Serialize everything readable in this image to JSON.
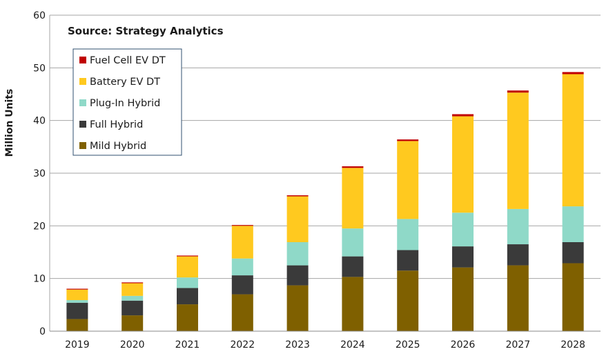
{
  "chart_data": {
    "type": "bar",
    "stacked": true,
    "title": "",
    "source_note": "Source: Strategy Analytics",
    "xlabel": "",
    "ylabel": "Million Units",
    "ylim": [
      0,
      60
    ],
    "yticks": [
      0,
      10,
      20,
      30,
      40,
      50,
      60
    ],
    "grid": true,
    "legend_position": "top-left",
    "categories": [
      "2019",
      "2020",
      "2021",
      "2022",
      "2023",
      "2024",
      "2025",
      "2026",
      "2027",
      "2028"
    ],
    "series": [
      {
        "name": "Mild Hybrid",
        "color": "#7f6000",
        "values": [
          2.3,
          3.0,
          5.1,
          7.0,
          8.7,
          10.3,
          11.5,
          12.1,
          12.5,
          12.9
        ]
      },
      {
        "name": "Full Hybrid",
        "color": "#3a3a3a",
        "values": [
          3.1,
          2.8,
          3.1,
          3.6,
          3.8,
          3.9,
          3.9,
          4.0,
          4.0,
          4.0
        ]
      },
      {
        "name": "Plug-In Hybrid",
        "color": "#8fd9c8",
        "values": [
          0.5,
          0.9,
          2.0,
          3.2,
          4.4,
          5.3,
          5.9,
          6.4,
          6.7,
          6.8
        ]
      },
      {
        "name": "Battery EV DT",
        "color": "#ffc91f",
        "values": [
          2.0,
          2.4,
          4.0,
          6.2,
          8.7,
          11.5,
          14.8,
          18.3,
          22.1,
          25.1
        ]
      },
      {
        "name": "Fuel Cell EV DT",
        "color": "#c00000",
        "values": [
          0.05,
          0.05,
          0.1,
          0.1,
          0.2,
          0.3,
          0.3,
          0.4,
          0.4,
          0.4
        ]
      }
    ]
  }
}
